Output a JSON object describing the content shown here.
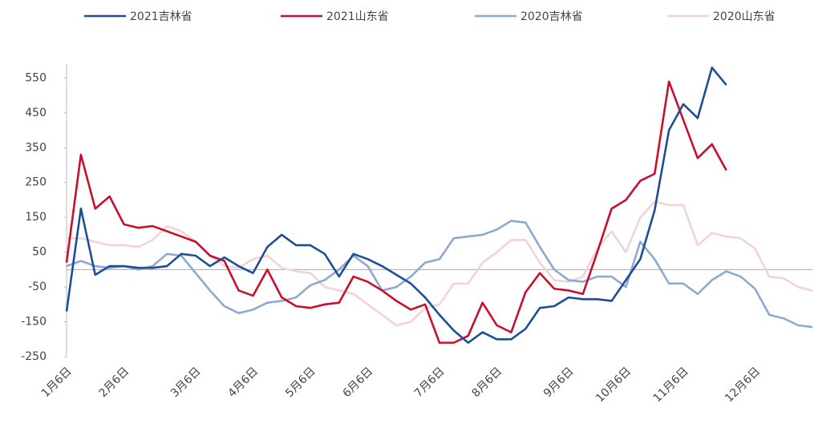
{
  "chart_data": {
    "type": "line",
    "categories": [
      "1月6日",
      null,
      null,
      null,
      "2月6日",
      null,
      null,
      null,
      null,
      "3月6日",
      null,
      null,
      null,
      "4月6日",
      null,
      null,
      null,
      "5月6日",
      null,
      null,
      null,
      "6月6日",
      null,
      null,
      null,
      null,
      "7月6日",
      null,
      null,
      null,
      "8月6日",
      null,
      null,
      null,
      null,
      "9月6日",
      null,
      null,
      null,
      "10月6日",
      null,
      null,
      null,
      "11月6日",
      null,
      null,
      null,
      null,
      "12月6日",
      null,
      null,
      null,
      null
    ],
    "series": [
      {
        "name": "2021吉林省",
        "color": "#1f4e96",
        "values": [
          -120,
          175,
          -15,
          10,
          10,
          5,
          5,
          10,
          45,
          40,
          10,
          35,
          10,
          -10,
          65,
          100,
          70,
          70,
          45,
          -20,
          45,
          30,
          10,
          -15,
          -40,
          -80,
          -130,
          -175,
          -210,
          -180,
          -200,
          -200,
          -170,
          -110,
          -105,
          -80,
          -85,
          -85,
          -90,
          -30,
          30,
          170,
          400,
          475,
          435,
          580,
          530,
          null,
          null,
          null,
          null,
          null,
          null
        ]
      },
      {
        "name": "2021山东省",
        "color": "#c8102e",
        "values": [
          20,
          330,
          175,
          210,
          130,
          120,
          125,
          110,
          95,
          80,
          40,
          25,
          -60,
          -75,
          0,
          -80,
          -105,
          -110,
          -100,
          -95,
          -20,
          -35,
          -60,
          -90,
          -115,
          -100,
          -210,
          -210,
          -190,
          -95,
          -160,
          -180,
          -65,
          -10,
          -55,
          -60,
          -70,
          50,
          175,
          200,
          255,
          275,
          540,
          430,
          320,
          360,
          285,
          null,
          null,
          null,
          null,
          null,
          null
        ]
      },
      {
        "name": "2020吉林省",
        "color": "#8ea9d0",
        "values": [
          10,
          25,
          10,
          5,
          10,
          0,
          10,
          45,
          40,
          -10,
          -60,
          -105,
          -125,
          -115,
          -95,
          -90,
          -80,
          -45,
          -30,
          0,
          40,
          10,
          -60,
          -50,
          -20,
          20,
          30,
          90,
          95,
          100,
          115,
          140,
          135,
          65,
          0,
          -30,
          -35,
          -20,
          -20,
          -50,
          80,
          30,
          -40,
          -40,
          -70,
          -30,
          -5,
          -20,
          -55,
          -130,
          -140,
          -160,
          -165
        ]
      },
      {
        "name": "2020山东省",
        "color": "#f2d3d6",
        "values": [
          90,
          90,
          80,
          70,
          70,
          65,
          85,
          125,
          110,
          80,
          40,
          10,
          5,
          30,
          40,
          5,
          -5,
          -10,
          -50,
          -60,
          -70,
          -100,
          -130,
          -160,
          -150,
          -110,
          -100,
          -40,
          -40,
          20,
          50,
          85,
          85,
          20,
          -30,
          -35,
          -20,
          60,
          110,
          50,
          150,
          195,
          185,
          185,
          70,
          105,
          95,
          90,
          60,
          -20,
          -25,
          -50,
          -60
        ]
      }
    ],
    "ylim": [
      -250,
      590
    ],
    "yticks": [
      -250,
      -150,
      -50,
      50,
      150,
      250,
      350,
      450,
      550
    ],
    "grid": false,
    "legend": "top"
  }
}
